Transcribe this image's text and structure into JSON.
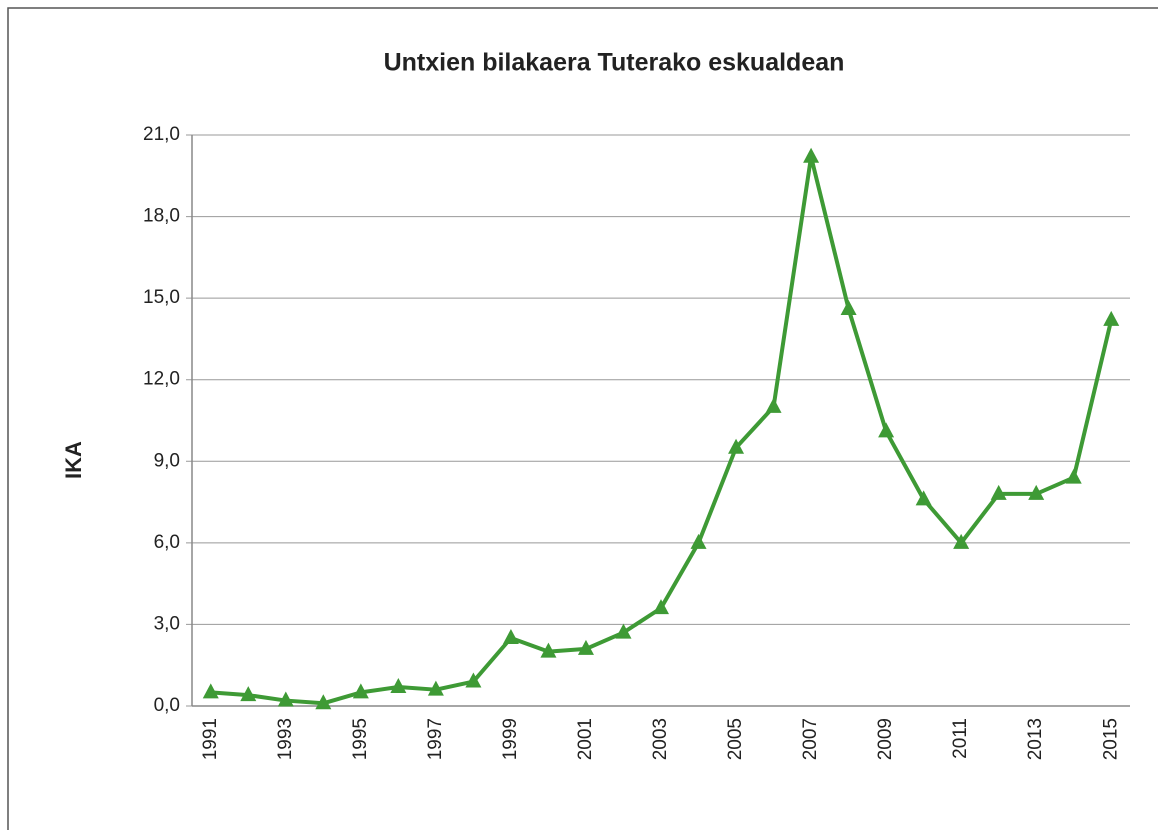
{
  "chart_data": {
    "type": "line",
    "title": "Untxien bilakaera Tuterako eskualdean",
    "y_label": "IKA",
    "categories": [
      "1991",
      null,
      "1993",
      null,
      "1995",
      null,
      "1997",
      null,
      "1999",
      null,
      "2001",
      null,
      "2003",
      null,
      "2005",
      null,
      "2007",
      null,
      "2009",
      null,
      "2011",
      null,
      "2013",
      null,
      "2015"
    ],
    "values": [
      0.5,
      0.4,
      0.2,
      0.1,
      0.5,
      0.7,
      0.6,
      0.9,
      2.5,
      2.0,
      2.1,
      2.7,
      3.6,
      6.0,
      9.5,
      11.0,
      20.2,
      14.6,
      10.1,
      7.6,
      6.0,
      7.8,
      7.8,
      8.4,
      14.2
    ],
    "color": "#3e9a35",
    "ylim": [
      0,
      21
    ],
    "yticks": [
      {
        "value": 0,
        "label": "0,0"
      },
      {
        "value": 3,
        "label": "3,0"
      },
      {
        "value": 6,
        "label": "6,0"
      },
      {
        "value": 9,
        "label": "9,0"
      },
      {
        "value": 12,
        "label": "12,0"
      },
      {
        "value": 15,
        "label": "15,0"
      },
      {
        "value": 18,
        "label": "18,0"
      },
      {
        "value": 21,
        "label": "21,0"
      }
    ],
    "grid": true
  }
}
